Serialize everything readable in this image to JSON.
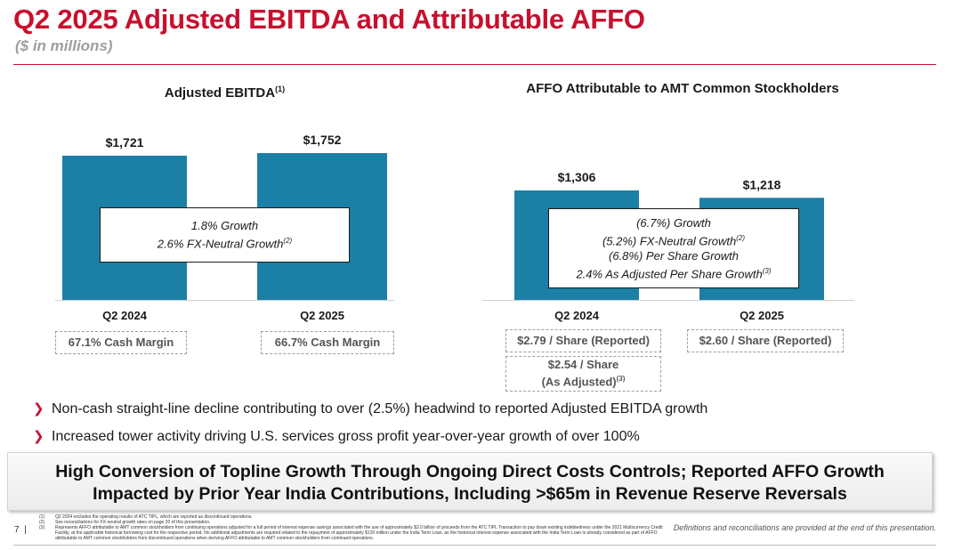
{
  "header": {
    "title": "Q2 2025 Adjusted EBITDA and Attributable AFFO",
    "subtitle": "($ in millions)"
  },
  "colors": {
    "accent": "#c8102e",
    "bar": "#1c7fa6"
  },
  "chart_data": [
    {
      "type": "bar",
      "title": "Adjusted EBITDA",
      "title_note": "(1)",
      "categories": [
        "Q2 2024",
        "Q2 2025"
      ],
      "values": [
        1721,
        1752
      ],
      "value_labels": [
        "$1,721",
        "$1,752"
      ],
      "ylim": [
        0,
        1752
      ],
      "growth_lines": [
        {
          "text": "1.8% Growth",
          "note": ""
        },
        {
          "text": "2.6% FX-Neutral Growth",
          "note": "(2)"
        }
      ],
      "footers": [
        "67.1% Cash Margin",
        "66.7% Cash Margin"
      ]
    },
    {
      "type": "bar",
      "title": "AFFO Attributable to AMT Common Stockholders",
      "title_note": "",
      "categories": [
        "Q2 2024",
        "Q2 2025"
      ],
      "values": [
        1306,
        1218
      ],
      "value_labels": [
        "$1,306",
        "$1,218"
      ],
      "ylim": [
        0,
        1752
      ],
      "growth_lines": [
        {
          "text": "(6.7%) Growth",
          "note": ""
        },
        {
          "text": "(5.2%) FX-Neutral Growth",
          "note": "(2)"
        },
        {
          "text": "(6.8%) Per Share Growth",
          "note": ""
        },
        {
          "text": "2.4% As Adjusted Per Share Growth",
          "note": "(3)"
        }
      ],
      "footers": [
        "$2.79 / Share (Reported)",
        "$2.60 / Share (Reported)"
      ],
      "adjusted_footer": {
        "line1": "$2.54 / Share",
        "line2": "(As Adjusted)",
        "note": "(3)"
      }
    }
  ],
  "bullets": [
    "Non-cash straight-line decline contributing to over (2.5%) headwind to reported Adjusted EBITDA growth",
    "Increased tower activity driving U.S. services gross profit year-over-year growth of over 100%"
  ],
  "banner": {
    "line1": "High Conversion of Topline Growth Through Ongoing Direct Costs Controls; Reported AFFO Growth",
    "line2": "Impacted by Prior Year India Contributions, Including >$65m in Revenue Reserve Reversals"
  },
  "footer": {
    "page_number": "7",
    "notes": [
      {
        "num": "(1)",
        "text": "Q2 2024 excludes the operating results of ATC TIPL, which are reported as discontinued operations."
      },
      {
        "num": "(2)",
        "text": "See reconciliations for FX-neutral growth rates on page 20 of this presentation."
      },
      {
        "num": "(3)",
        "text": "Represents AFFO attributable to AMT common stockholders from continuing operations adjusted for a full period of interest expense savings associated with the use of approximately $2.0 billion of proceeds from the ATC TIPL Transaction to pay down existing indebtedness under the 2021 Multicurrency Credit Facility, at the applicable historical borrowing cost for the respective period. No additional adjustments are required related to the repayment of approximately $120 million under the India Term Loan, as the historical interest expense associated with the India Term Loan is already considered as part of AFFO attributable to AMT common stockholders from discontinued operations when deriving AFFO attributable to AMT common stockholders from continued operations."
      }
    ],
    "definitions": "Definitions and reconciliations are provided at the end of this presentation."
  }
}
